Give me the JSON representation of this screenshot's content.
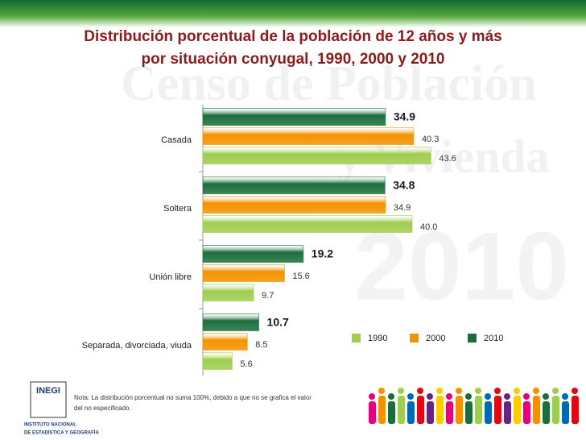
{
  "chart_data": {
    "type": "hbar",
    "title": [
      "Distribución porcentual de la población de 12 años y más",
      "por situación conyugal, 1990, 2000 y 2010"
    ],
    "categories": [
      "Casada",
      "Soltera",
      "Unión libre",
      "Separada, divorciada, viuda"
    ],
    "series": [
      {
        "name": "2010",
        "color": "#1b6e3c",
        "values": [
          34.9,
          34.8,
          19.2,
          10.7
        ]
      },
      {
        "name": "2000",
        "color": "#f39200",
        "values": [
          40.3,
          34.9,
          15.6,
          8.5
        ]
      },
      {
        "name": "1990",
        "color": "#9fcd4f",
        "values": [
          43.6,
          40.0,
          9.7,
          5.6
        ],
        "value_labels": [
          "43.6",
          "40.0",
          "9.7",
          "5.6"
        ]
      }
    ],
    "legend_order": [
      2,
      1,
      0
    ],
    "note": [
      "Nota: La distribución porcentual no suma 100%, debido a que no se grafica el valor",
      "del no especificado."
    ],
    "watermark": [
      "Censo de Población",
      "y Vivienda",
      "2010"
    ],
    "logo": {
      "name": "INEGI",
      "lines": [
        "INSTITUTO NACIONAL",
        "DE ESTADÍSTICA Y GEOGRAFÍA"
      ]
    }
  }
}
